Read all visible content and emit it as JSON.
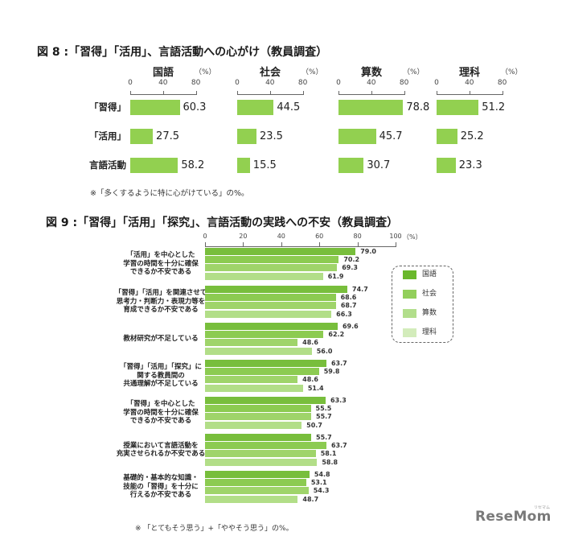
{
  "figure8": {
    "title": "図 8 :「習得」「活用」、言語活動への心がけ（教員調査）",
    "unit": "（%）",
    "note": "※「多くするように特に心がけている」の%。"
  },
  "figure9": {
    "title": "図 9 :「習得」「活用」「探究」、言語活動の実践への不安（教員調査）",
    "unit": "（%）",
    "note": "※ 「とてもそう思う」+「ややそう思う」の%。",
    "row_labels": [
      [
        "「活用」を中心とした",
        "学習の時間を十分に確保",
        "できるか不安である"
      ],
      [
        "「習得」「活用」を関連させて",
        "思考力・判断力・表現力等を",
        "育成できるか不安である"
      ],
      [
        "教材研究が不足している"
      ],
      [
        "「習得」「活用」「探究」に",
        "関する教員間の",
        "共通理解が不足している"
      ],
      [
        "「習得」を中心とした",
        "学習の時間を十分に確保",
        "できるか不安である"
      ],
      [
        "授業において言語活動を",
        "充実させられるか不安である"
      ],
      [
        "基礎的・基本的な知識・",
        "技能の「習得」を十分に",
        "行えるか不安である"
      ]
    ]
  },
  "colors": {
    "fig8_bar": "#92d050",
    "fig9_bars": [
      "#78be3c",
      "#8ccb51",
      "#9fd46a",
      "#b2de88"
    ],
    "fig9_legend": [
      "#6ab82c",
      "#92cf5b",
      "#b2de8b",
      "#d3ecbb"
    ]
  },
  "logo": {
    "main": "ReseMom",
    "kana": "リセマム"
  },
  "chart_data": [
    {
      "type": "bar",
      "orientation": "horizontal",
      "title": "図 8 :「習得」「活用」、言語活動への心がけ（教員調査）",
      "categories": [
        "「習得」",
        "「活用」",
        "言語活動"
      ],
      "series": [
        {
          "name": "国語",
          "values": [
            60.3,
            27.5,
            58.2
          ]
        },
        {
          "name": "社会",
          "values": [
            44.5,
            23.5,
            15.5
          ]
        },
        {
          "name": "算数",
          "values": [
            78.8,
            45.7,
            30.7
          ]
        },
        {
          "name": "理科",
          "values": [
            51.2,
            25.2,
            23.3
          ]
        }
      ],
      "layout": "small-multiples (one panel per series)",
      "xlabel": "（%）",
      "ylabel": "",
      "xlim": [
        0,
        80
      ],
      "ticks": [
        0,
        40,
        80
      ],
      "grid": false,
      "legend": "none (panel headers)",
      "annotation": "※「多くするように特に心がけている」の%。"
    },
    {
      "type": "bar",
      "orientation": "horizontal",
      "title": "図 9 :「習得」「活用」「探究」、言語活動の実践への不安（教員調査）",
      "categories": [
        "「活用」を中心とした学習の時間を十分に確保できるか不安である",
        "「習得」「活用」を関連させて思考力・判断力・表現力等を育成できるか不安である",
        "教材研究が不足している",
        "「習得」「活用」「探究」に関する教員間の共通理解が不足している",
        "「習得」を中心とした学習の時間を十分に確保できるか不安である",
        "授業において言語活動を充実させられるか不安である",
        "基礎的・基本的な知識・技能の「習得」を十分に行えるか不安である"
      ],
      "series": [
        {
          "name": "国語",
          "values": [
            79.0,
            74.7,
            69.6,
            63.7,
            63.3,
            55.7,
            54.8
          ]
        },
        {
          "name": "社会",
          "values": [
            70.2,
            68.6,
            62.2,
            59.8,
            55.5,
            63.7,
            53.1
          ]
        },
        {
          "name": "算数",
          "values": [
            69.3,
            68.7,
            48.6,
            48.6,
            55.7,
            58.1,
            54.3
          ]
        },
        {
          "name": "理科",
          "values": [
            61.9,
            66.3,
            56.0,
            51.4,
            50.7,
            58.8,
            48.7
          ]
        }
      ],
      "xlabel": "（%）",
      "ylabel": "",
      "xlim": [
        0,
        100
      ],
      "ticks": [
        0,
        20,
        40,
        60,
        80,
        100
      ],
      "grid": false,
      "legend": "right (dashed box)",
      "annotation": "※ 「とてもそう思う」+「ややそう思う」の%。"
    }
  ]
}
